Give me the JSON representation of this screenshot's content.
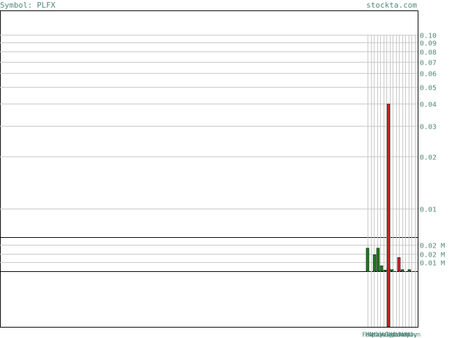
{
  "header": {
    "symbol_label": "Symbol: PLFX",
    "site_label": "stockta.com"
  },
  "colors": {
    "text": "#4f8a7a",
    "grid": "#c8c8c8",
    "up": "#1f7a1f",
    "down": "#cc2222",
    "border": "#000000"
  },
  "chart_data": [
    {
      "type": "line",
      "scale": "log",
      "y_ticks": [
        0.1,
        0.09,
        0.08,
        0.07,
        0.06,
        0.05,
        0.04,
        0.03,
        0.02,
        0.01
      ],
      "y_tick_labels": [
        "0.10",
        "0.09",
        "0.08",
        "0.07",
        "0.06",
        "0.05",
        "0.04",
        "0.03",
        "0.02",
        "0.01"
      ],
      "ylim": [
        0.005,
        0.11
      ],
      "price_bar": {
        "low": 0.002,
        "high": 0.04
      },
      "grid": true
    },
    {
      "type": "bar",
      "y_tick_labels": [
        "0.02 M",
        "0.02 M",
        "0.01 M"
      ],
      "y_ticks_value": [
        0.02,
        0.015,
        0.01
      ],
      "ylim": [
        0,
        0.031
      ],
      "bars": [
        {
          "value": 0.021,
          "color": "up"
        },
        {
          "value": 0.015,
          "color": "up"
        },
        {
          "value": 0.021,
          "color": "up"
        },
        {
          "value": 0.005,
          "color": "up"
        },
        {
          "value": 0.001,
          "color": "up"
        },
        {
          "value": 0.003,
          "color": "down"
        },
        {
          "value": 0.0015,
          "color": "up"
        },
        {
          "value": 0.0125,
          "color": "down"
        },
        {
          "value": 0.0015,
          "color": "up"
        },
        {
          "value": 0.0015,
          "color": "up"
        }
      ]
    }
  ],
  "x_tick_labels": [
    "Feb",
    "Mar",
    "Apr",
    "May",
    "Jun",
    "Jul",
    "Aug",
    "Sep",
    "Oct",
    "Nov",
    "Dec",
    "Jan",
    "Mar",
    "Apr",
    "May",
    "Jun"
  ]
}
